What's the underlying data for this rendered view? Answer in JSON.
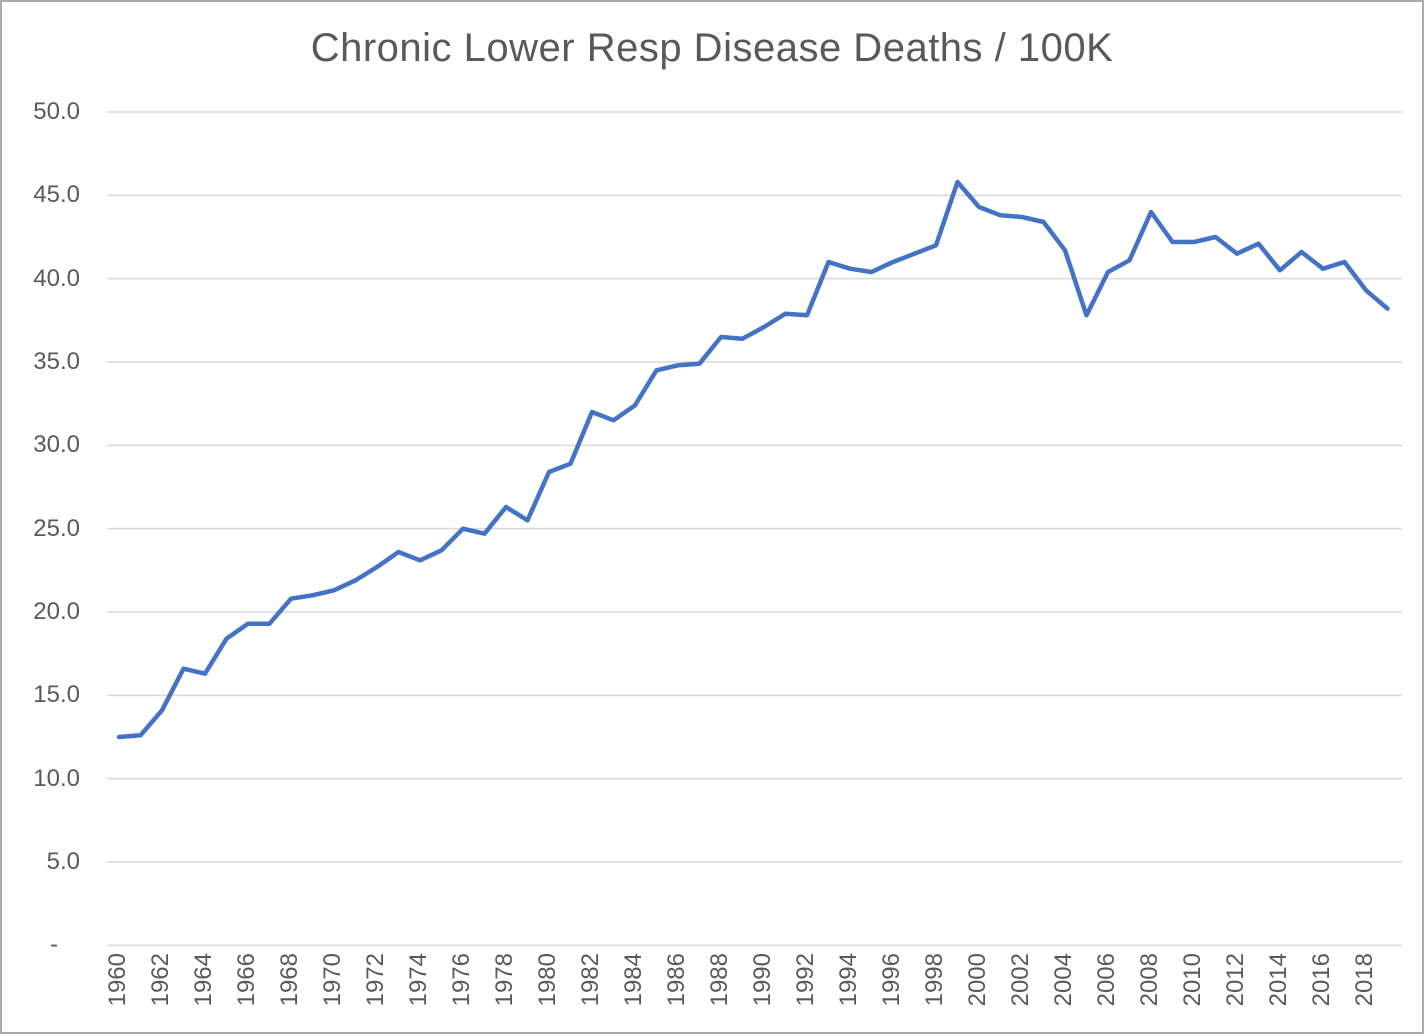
{
  "chart_data": {
    "type": "line",
    "title": "Chronic Lower Resp Disease Deaths / 100K",
    "x": [
      1960,
      1961,
      1962,
      1963,
      1964,
      1965,
      1966,
      1967,
      1968,
      1969,
      1970,
      1971,
      1972,
      1973,
      1974,
      1975,
      1976,
      1977,
      1978,
      1979,
      1980,
      1981,
      1982,
      1983,
      1984,
      1985,
      1986,
      1987,
      1988,
      1989,
      1990,
      1991,
      1992,
      1993,
      1994,
      1995,
      1996,
      1997,
      1998,
      1999,
      2000,
      2001,
      2002,
      2003,
      2004,
      2005,
      2006,
      2007,
      2008,
      2009,
      2010,
      2011,
      2012,
      2013,
      2014,
      2015,
      2016,
      2017,
      2018,
      2019
    ],
    "values": [
      12.5,
      12.6,
      14.1,
      16.6,
      16.3,
      18.4,
      19.3,
      19.3,
      20.8,
      21.0,
      21.3,
      21.9,
      22.7,
      23.6,
      23.1,
      23.7,
      25.0,
      24.7,
      26.3,
      25.5,
      28.4,
      28.9,
      32.0,
      31.5,
      32.4,
      34.5,
      34.8,
      34.9,
      36.5,
      36.4,
      37.1,
      37.9,
      37.8,
      41.0,
      40.6,
      40.4,
      41.0,
      41.5,
      42.0,
      45.8,
      44.3,
      43.8,
      43.7,
      43.4,
      41.7,
      37.8,
      40.4,
      41.1,
      44.0,
      42.2,
      42.2,
      42.5,
      41.5,
      42.1,
      40.5,
      41.6,
      40.6,
      41.0,
      39.3,
      38.2
    ],
    "xlabel": "",
    "ylabel": "",
    "ylim": [
      0,
      50
    ],
    "ytick_step": 5,
    "ytick_labels": [
      "-",
      "5.0",
      "10.0",
      "15.0",
      "20.0",
      "25.0",
      "30.0",
      "35.0",
      "40.0",
      "45.0",
      "50.0"
    ],
    "xtick_labels": [
      "1960",
      "1962",
      "1964",
      "1966",
      "1968",
      "1970",
      "1972",
      "1974",
      "1976",
      "1978",
      "1980",
      "1982",
      "1984",
      "1986",
      "1988",
      "1990",
      "1992",
      "1994",
      "1996",
      "1998",
      "2000",
      "2002",
      "2004",
      "2006",
      "2008",
      "2010",
      "2012",
      "2014",
      "2016",
      "2018"
    ],
    "grid": true,
    "legend": "none",
    "colors": {
      "series": "#4472C4",
      "gridline": "#D9D9D9",
      "tick_text": "#595959",
      "title_text": "#595959",
      "background": "#FFFFFF",
      "border": "#ABABAB"
    }
  }
}
